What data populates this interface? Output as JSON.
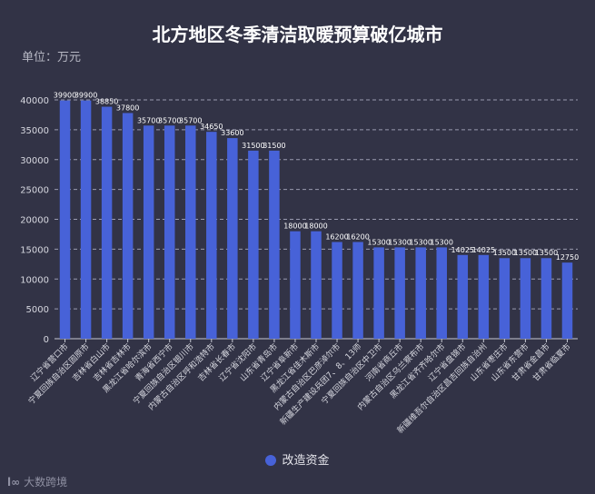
{
  "chart_data": {
    "type": "bar",
    "title": "北方地区冬季清洁取暖预算破亿城市",
    "unit_label": "单位：万元",
    "legend_label": "改造资金",
    "bar_color": "#4762d8",
    "grid": true,
    "ylim": [
      0,
      40000
    ],
    "yticks": [
      0,
      5000,
      10000,
      15000,
      20000,
      25000,
      30000,
      35000,
      40000
    ],
    "categories": [
      "辽宁省营口市",
      "宁夏回族自治区固原市",
      "吉林省白山市",
      "吉林省吉林市",
      "黑龙江省哈尔滨市",
      "青海省西宁市",
      "宁夏回族自治区银川市",
      "内蒙古自治区呼和浩特市",
      "吉林省长春市",
      "辽宁省沈阳市",
      "山东省青岛市",
      "辽宁省阜新市",
      "黑龙江省佳木斯市",
      "内蒙古自治区巴彦淖尔市",
      "新疆生产建设兵团7、8、13师",
      "宁夏回族自治区中卫市",
      "河南省商丘市",
      "内蒙古自治区乌兰察布市",
      "黑龙江省齐齐哈尔市",
      "辽宁省盘锦市",
      "新疆维吾尔自治区昌吉回族自治州",
      "山东省枣庄市",
      "山东省东营市",
      "甘肃省金昌市",
      "甘肃省临夏市"
    ],
    "values": [
      39900,
      39900,
      38850,
      37800,
      35700,
      35700,
      35700,
      34650,
      33600,
      31500,
      31500,
      18000,
      18000,
      16200,
      16200,
      15300,
      15300,
      15300,
      15300,
      14025,
      14025,
      13500,
      13500,
      13500,
      12750
    ]
  },
  "watermark": {
    "logo_text": "l∞",
    "text": "大数跨境"
  }
}
